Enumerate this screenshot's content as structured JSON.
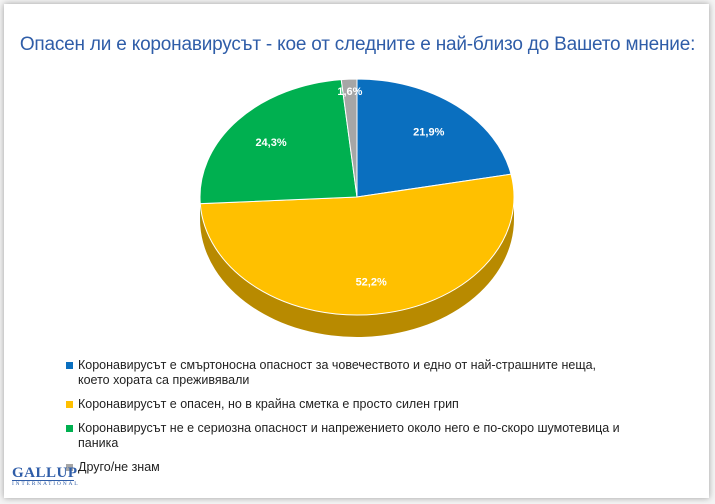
{
  "title": "Опасен ли е коронавирусът - кое от следните е най-близо до Вашето мнение:",
  "chart_data": {
    "type": "pie",
    "title": "Опасен ли е коронавирусът - кое от следните е най-близо до Вашето мнение:",
    "slices": [
      {
        "label": "Коронавирусът е смъртоносна опасност за човечеството и едно от най-страшните неща, което хората са преживявали",
        "value": 21.9,
        "display": "21,9%",
        "color": "#0a6fbf"
      },
      {
        "label": "Коронавирусът е опасен, но в крайна сметка е просто силен грип",
        "value": 52.2,
        "display": "52,2%",
        "color": "#ffc000"
      },
      {
        "label": "Коронавирусът не е сериозна опасност и напрежението около него е по-скоро шумотевица и паника",
        "value": 24.3,
        "display": "24,3%",
        "color": "#00b050"
      },
      {
        "label": "Друго/не знам",
        "value": 1.6,
        "display": "1,6%",
        "color": "#a6a6a6"
      }
    ],
    "legend_position": "bottom"
  },
  "logo": {
    "main": "GALLUP",
    "sub": "INTERNATIONAL"
  }
}
